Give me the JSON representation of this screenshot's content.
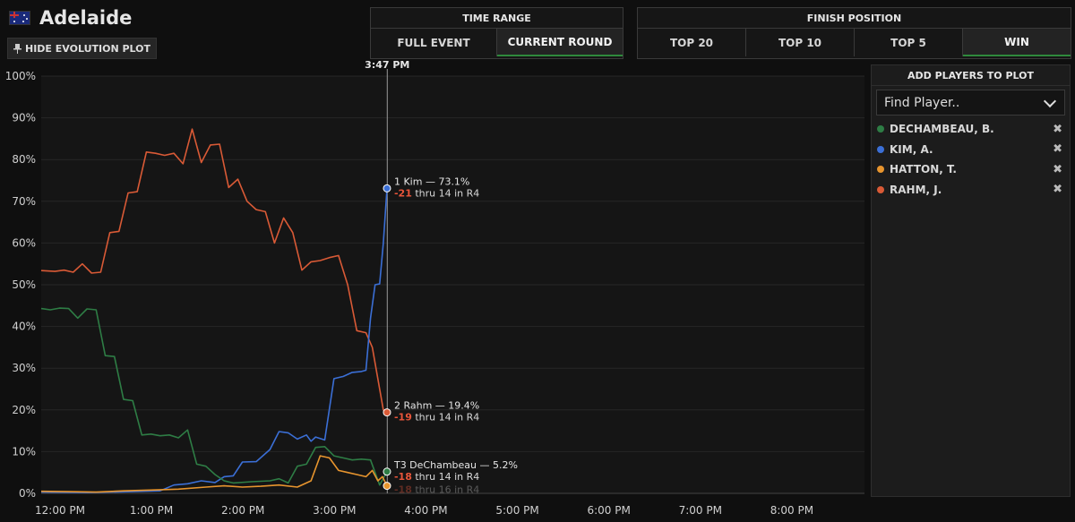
{
  "header": {
    "title": "Adelaide",
    "hide_button": "HIDE EVOLUTION PLOT",
    "pin_icon": "pin-icon",
    "flag_icon": "australia-flag-icon"
  },
  "time_range": {
    "title": "TIME RANGE",
    "options": [
      "FULL EVENT",
      "CURRENT ROUND"
    ],
    "selected": "CURRENT ROUND"
  },
  "finish_position": {
    "title": "FINISH POSITION",
    "options": [
      "TOP 20",
      "TOP 10",
      "TOP 5",
      "WIN"
    ],
    "selected": "WIN"
  },
  "players_panel": {
    "title": "ADD PLAYERS TO PLOT",
    "finder_placeholder": "Find Player..",
    "players": [
      {
        "name": "DECHAMBEAU, B.",
        "color": "#2e7d45"
      },
      {
        "name": "KIM, A.",
        "color": "#3b6fd6"
      },
      {
        "name": "HATTON, T.",
        "color": "#e8952e"
      },
      {
        "name": "RAHM, J.",
        "color": "#d95a36"
      }
    ]
  },
  "chart_data": {
    "type": "line",
    "y_ticks": [
      "0%",
      "10%",
      "20%",
      "30%",
      "40%",
      "50%",
      "60%",
      "70%",
      "80%",
      "90%",
      "100%"
    ],
    "ylim": [
      0,
      100
    ],
    "x_ticks": [
      "12:00 PM",
      "1:00 PM",
      "2:00 PM",
      "3:00 PM",
      "4:00 PM",
      "5:00 PM",
      "6:00 PM",
      "7:00 PM",
      "8:00 PM"
    ],
    "xlim_hours": [
      12,
      21
    ],
    "cursor_label": "3:47 PM",
    "cursor_hour": 15.783,
    "series": [
      {
        "name": "Rahm",
        "color": "#d95a36",
        "x": [
          12,
          12.15,
          12.25,
          12.35,
          12.45,
          12.55,
          12.65,
          12.75,
          12.85,
          12.95,
          13.05,
          13.15,
          13.25,
          13.35,
          13.45,
          13.55,
          13.65,
          13.75,
          13.85,
          13.95,
          14.05,
          14.15,
          14.25,
          14.35,
          14.45,
          14.55,
          14.65,
          14.75,
          14.85,
          14.95,
          15.05,
          15.15,
          15.25,
          15.35,
          15.45,
          15.55,
          15.62,
          15.66,
          15.7,
          15.74,
          15.78
        ],
        "y": [
          53.4,
          53.2,
          53.5,
          53,
          55,
          52.8,
          53,
          62.5,
          62.8,
          72,
          72.3,
          81.8,
          81.5,
          81,
          81.5,
          79,
          87.3,
          79.3,
          83.5,
          83.7,
          73.3,
          75.3,
          70,
          68,
          67.5,
          60,
          66,
          62.5,
          53.5,
          55.5,
          55.8,
          56.5,
          57,
          50,
          39,
          38.5,
          35,
          30,
          25,
          20,
          19.4
        ]
      },
      {
        "name": "Kim",
        "color": "#3b6fd6",
        "x": [
          12,
          12.5,
          13,
          13.3,
          13.45,
          13.6,
          13.75,
          13.9,
          14,
          14.1,
          14.2,
          14.35,
          14.5,
          14.6,
          14.7,
          14.8,
          14.9,
          14.95,
          15,
          15.1,
          15.2,
          15.3,
          15.4,
          15.5,
          15.55,
          15.6,
          15.65,
          15.7,
          15.74,
          15.78
        ],
        "y": [
          0.3,
          0.2,
          0.4,
          0.6,
          2,
          2.3,
          3,
          2.6,
          4,
          4.2,
          7.5,
          7.6,
          10.5,
          14.8,
          14.5,
          13,
          14,
          12.5,
          13.5,
          12.8,
          27.5,
          28,
          29,
          29.2,
          29.5,
          42,
          50,
          50.2,
          60,
          73.1
        ]
      },
      {
        "name": "DeChambeau",
        "color": "#2e7d45",
        "x": [
          12,
          12.1,
          12.2,
          12.3,
          12.4,
          12.5,
          12.6,
          12.7,
          12.8,
          12.9,
          13,
          13.1,
          13.2,
          13.3,
          13.4,
          13.5,
          13.6,
          13.7,
          13.8,
          13.9,
          14,
          14.1,
          14.3,
          14.5,
          14.6,
          14.7,
          14.8,
          14.9,
          15,
          15.1,
          15.2,
          15.3,
          15.4,
          15.5,
          15.6,
          15.65,
          15.7,
          15.78
        ],
        "y": [
          44.3,
          44,
          44.4,
          44.3,
          42,
          44.2,
          44,
          33,
          32.8,
          22.5,
          22.2,
          14,
          14.2,
          13.8,
          14,
          13.3,
          15.2,
          7,
          6.5,
          4.5,
          3,
          2.5,
          2.8,
          3,
          3.5,
          2.5,
          6.5,
          7,
          11,
          11.2,
          9,
          8.5,
          8,
          8.2,
          8,
          5,
          2,
          5.2
        ]
      },
      {
        "name": "Hatton",
        "color": "#e8952e",
        "x": [
          12,
          12.3,
          12.6,
          12.9,
          13.2,
          13.5,
          13.8,
          14,
          14.2,
          14.4,
          14.6,
          14.8,
          14.95,
          15.05,
          15.15,
          15.25,
          15.35,
          15.45,
          15.55,
          15.62,
          15.68,
          15.73,
          15.78
        ],
        "y": [
          0.5,
          0.4,
          0.3,
          0.6,
          0.8,
          1,
          1.5,
          1.8,
          1.5,
          1.7,
          2,
          1.5,
          3,
          9,
          8.5,
          5.5,
          5,
          4.5,
          4,
          5.5,
          3,
          4,
          1.8
        ]
      }
    ],
    "annotations": [
      {
        "series": "Kim",
        "label": "1 Kim — 73.1%",
        "score": "-21",
        "detail": "thru 14 in R4",
        "value": 73.1
      },
      {
        "series": "Rahm",
        "label": "2 Rahm — 19.4%",
        "score": "-19",
        "detail": "thru 14 in R4",
        "value": 19.4
      },
      {
        "series": "DeChambeau",
        "label": "T3 DeChambeau — 5.2%",
        "score": "-18",
        "detail": "thru 14 in R4",
        "value": 5.2
      },
      {
        "series": "Hatton",
        "label": "",
        "score": "-18",
        "detail": "thru 16 in R4",
        "value": 1.8
      }
    ]
  }
}
